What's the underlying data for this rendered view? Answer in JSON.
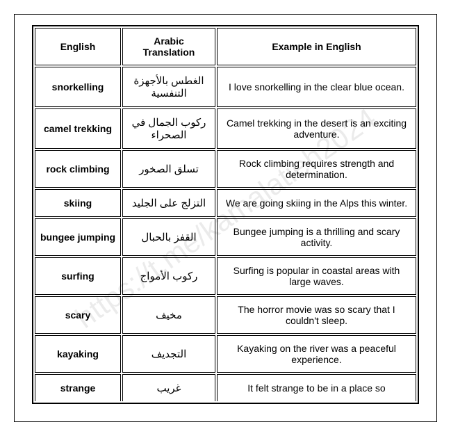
{
  "watermark": "https://t.me/kamalatieh2024",
  "headers": {
    "english": "English",
    "arabic": "Arabic Translation",
    "example": "Example in English"
  },
  "rows": [
    {
      "english": "snorkelling",
      "arabic": "الغطس بالأجهزة التنفسية",
      "example": "I love snorkelling in the clear blue ocean."
    },
    {
      "english": "camel trekking",
      "arabic": "ركوب الجمال في الصحراء",
      "example": "Camel trekking in the desert is an exciting adventure."
    },
    {
      "english": "rock climbing",
      "arabic": "تسلق الصخور",
      "example": "Rock climbing requires strength and determination."
    },
    {
      "english": "skiing",
      "arabic": "التزلج على الجليد",
      "example": "We are going skiing in the Alps this winter."
    },
    {
      "english": "bungee jumping",
      "arabic": "القفز بالحبال",
      "example": "Bungee jumping is a thrilling and scary activity."
    },
    {
      "english": "surfing",
      "arabic": "ركوب الأمواج",
      "example": "Surfing is popular in coastal areas with large waves."
    },
    {
      "english": "scary",
      "arabic": "مخيف",
      "example": "The horror movie was so scary that I couldn't sleep."
    },
    {
      "english": "kayaking",
      "arabic": "التجديف",
      "example": "Kayaking on the river was a peaceful experience."
    },
    {
      "english": "strange",
      "arabic": "غريب",
      "example": "It felt strange to be in a place so"
    }
  ]
}
